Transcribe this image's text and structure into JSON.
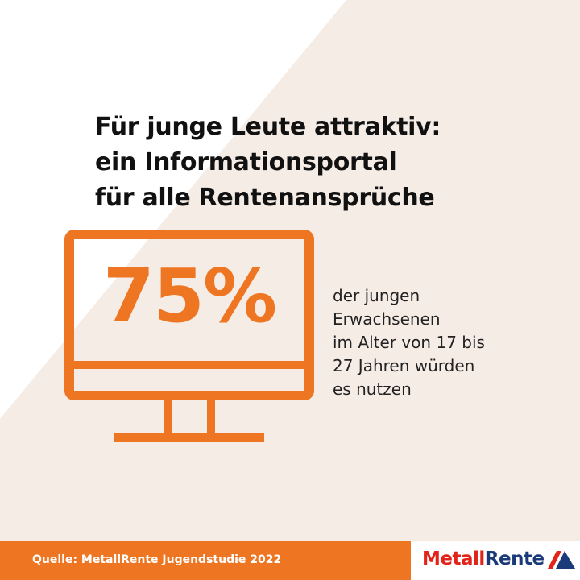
{
  "colors": {
    "accent": "#ee7623",
    "background_shape": "#f6ece6",
    "text": "#111111",
    "logo_red": "#e2231a",
    "logo_blue": "#1a3a7a"
  },
  "headline": {
    "line1": "Für junge Leute attraktiv:",
    "line2": "ein Informationsportal",
    "line3": "für alle Rentenansprüche"
  },
  "stat": {
    "value": "75%",
    "icon": "monitor-icon"
  },
  "description": {
    "line1": "der jungen",
    "line2": "Erwachsenen",
    "line3": "im Alter von 17 bis",
    "line4": "27 Jahren würden",
    "line5": "es nutzen"
  },
  "footer": {
    "source": "Quelle: MetallRente Jugendstudie 2022"
  },
  "logo": {
    "part1": "Metall",
    "part2": "Rente",
    "icon": "metallrente-logo-icon"
  }
}
